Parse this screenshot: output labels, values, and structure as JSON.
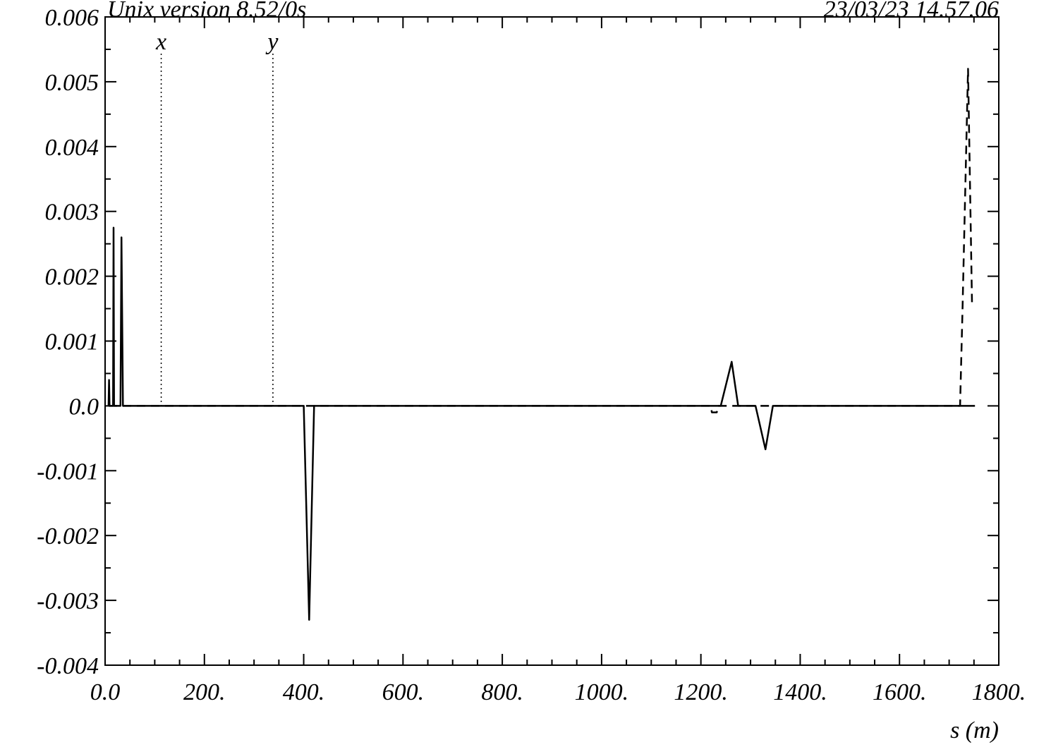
{
  "header": {
    "left": "Unix version 8.52/0s",
    "right": "23/03/23  14.57.06"
  },
  "chart_data": {
    "type": "line",
    "title": "",
    "xlabel": "s (m)",
    "ylabel": "",
    "xlim": [
      0,
      1800
    ],
    "ylim": [
      -0.004,
      0.006
    ],
    "grid": false,
    "x_ticks": [
      0,
      200,
      400,
      600,
      800,
      1000,
      1200,
      1400,
      1600,
      1800
    ],
    "x_tick_labels": [
      "0.0",
      "200.",
      "400.",
      "600.",
      "800.",
      "1000.",
      "1200.",
      "1400.",
      "1600.",
      "1800."
    ],
    "y_ticks": [
      -0.004,
      -0.003,
      -0.002,
      -0.001,
      0,
      0.001,
      0.002,
      0.003,
      0.004,
      0.005,
      0.006
    ],
    "y_tick_labels": [
      "-0.004",
      "-0.003",
      "-0.002",
      "-0.001",
      "0.0",
      "0.001",
      "0.002",
      "0.003",
      "0.004",
      "0.005",
      "0.006"
    ],
    "markers": [
      {
        "label": "x",
        "x": 113
      },
      {
        "label": "y",
        "x": 338
      }
    ],
    "series": [
      {
        "style": "solid",
        "color": "#000000",
        "points": [
          [
            7,
            0
          ],
          [
            8,
            0.0004
          ],
          [
            9,
            0
          ],
          [
            16,
            0
          ],
          [
            17,
            0.00275
          ],
          [
            18,
            0
          ],
          [
            31,
            0
          ],
          [
            33,
            0.0026
          ],
          [
            36,
            0
          ],
          [
            400,
            0
          ],
          [
            411,
            -0.0033
          ],
          [
            421,
            0
          ],
          [
            1240,
            0
          ],
          [
            1262,
            0.00068
          ],
          [
            1275,
            0
          ],
          [
            1310,
            0
          ],
          [
            1330,
            -0.00067
          ],
          [
            1345,
            0
          ],
          [
            1752,
            0
          ]
        ]
      },
      {
        "style": "dashed",
        "color": "#000000",
        "points": [
          [
            7,
            0
          ],
          [
            1220,
            0
          ],
          [
            1222,
            -0.0001
          ],
          [
            1232,
            -0.0001
          ],
          [
            1234,
            0
          ],
          [
            1722,
            0
          ],
          [
            1727,
            0.0015
          ],
          [
            1738,
            0.0052
          ],
          [
            1746,
            0.0016
          ]
        ]
      }
    ]
  }
}
